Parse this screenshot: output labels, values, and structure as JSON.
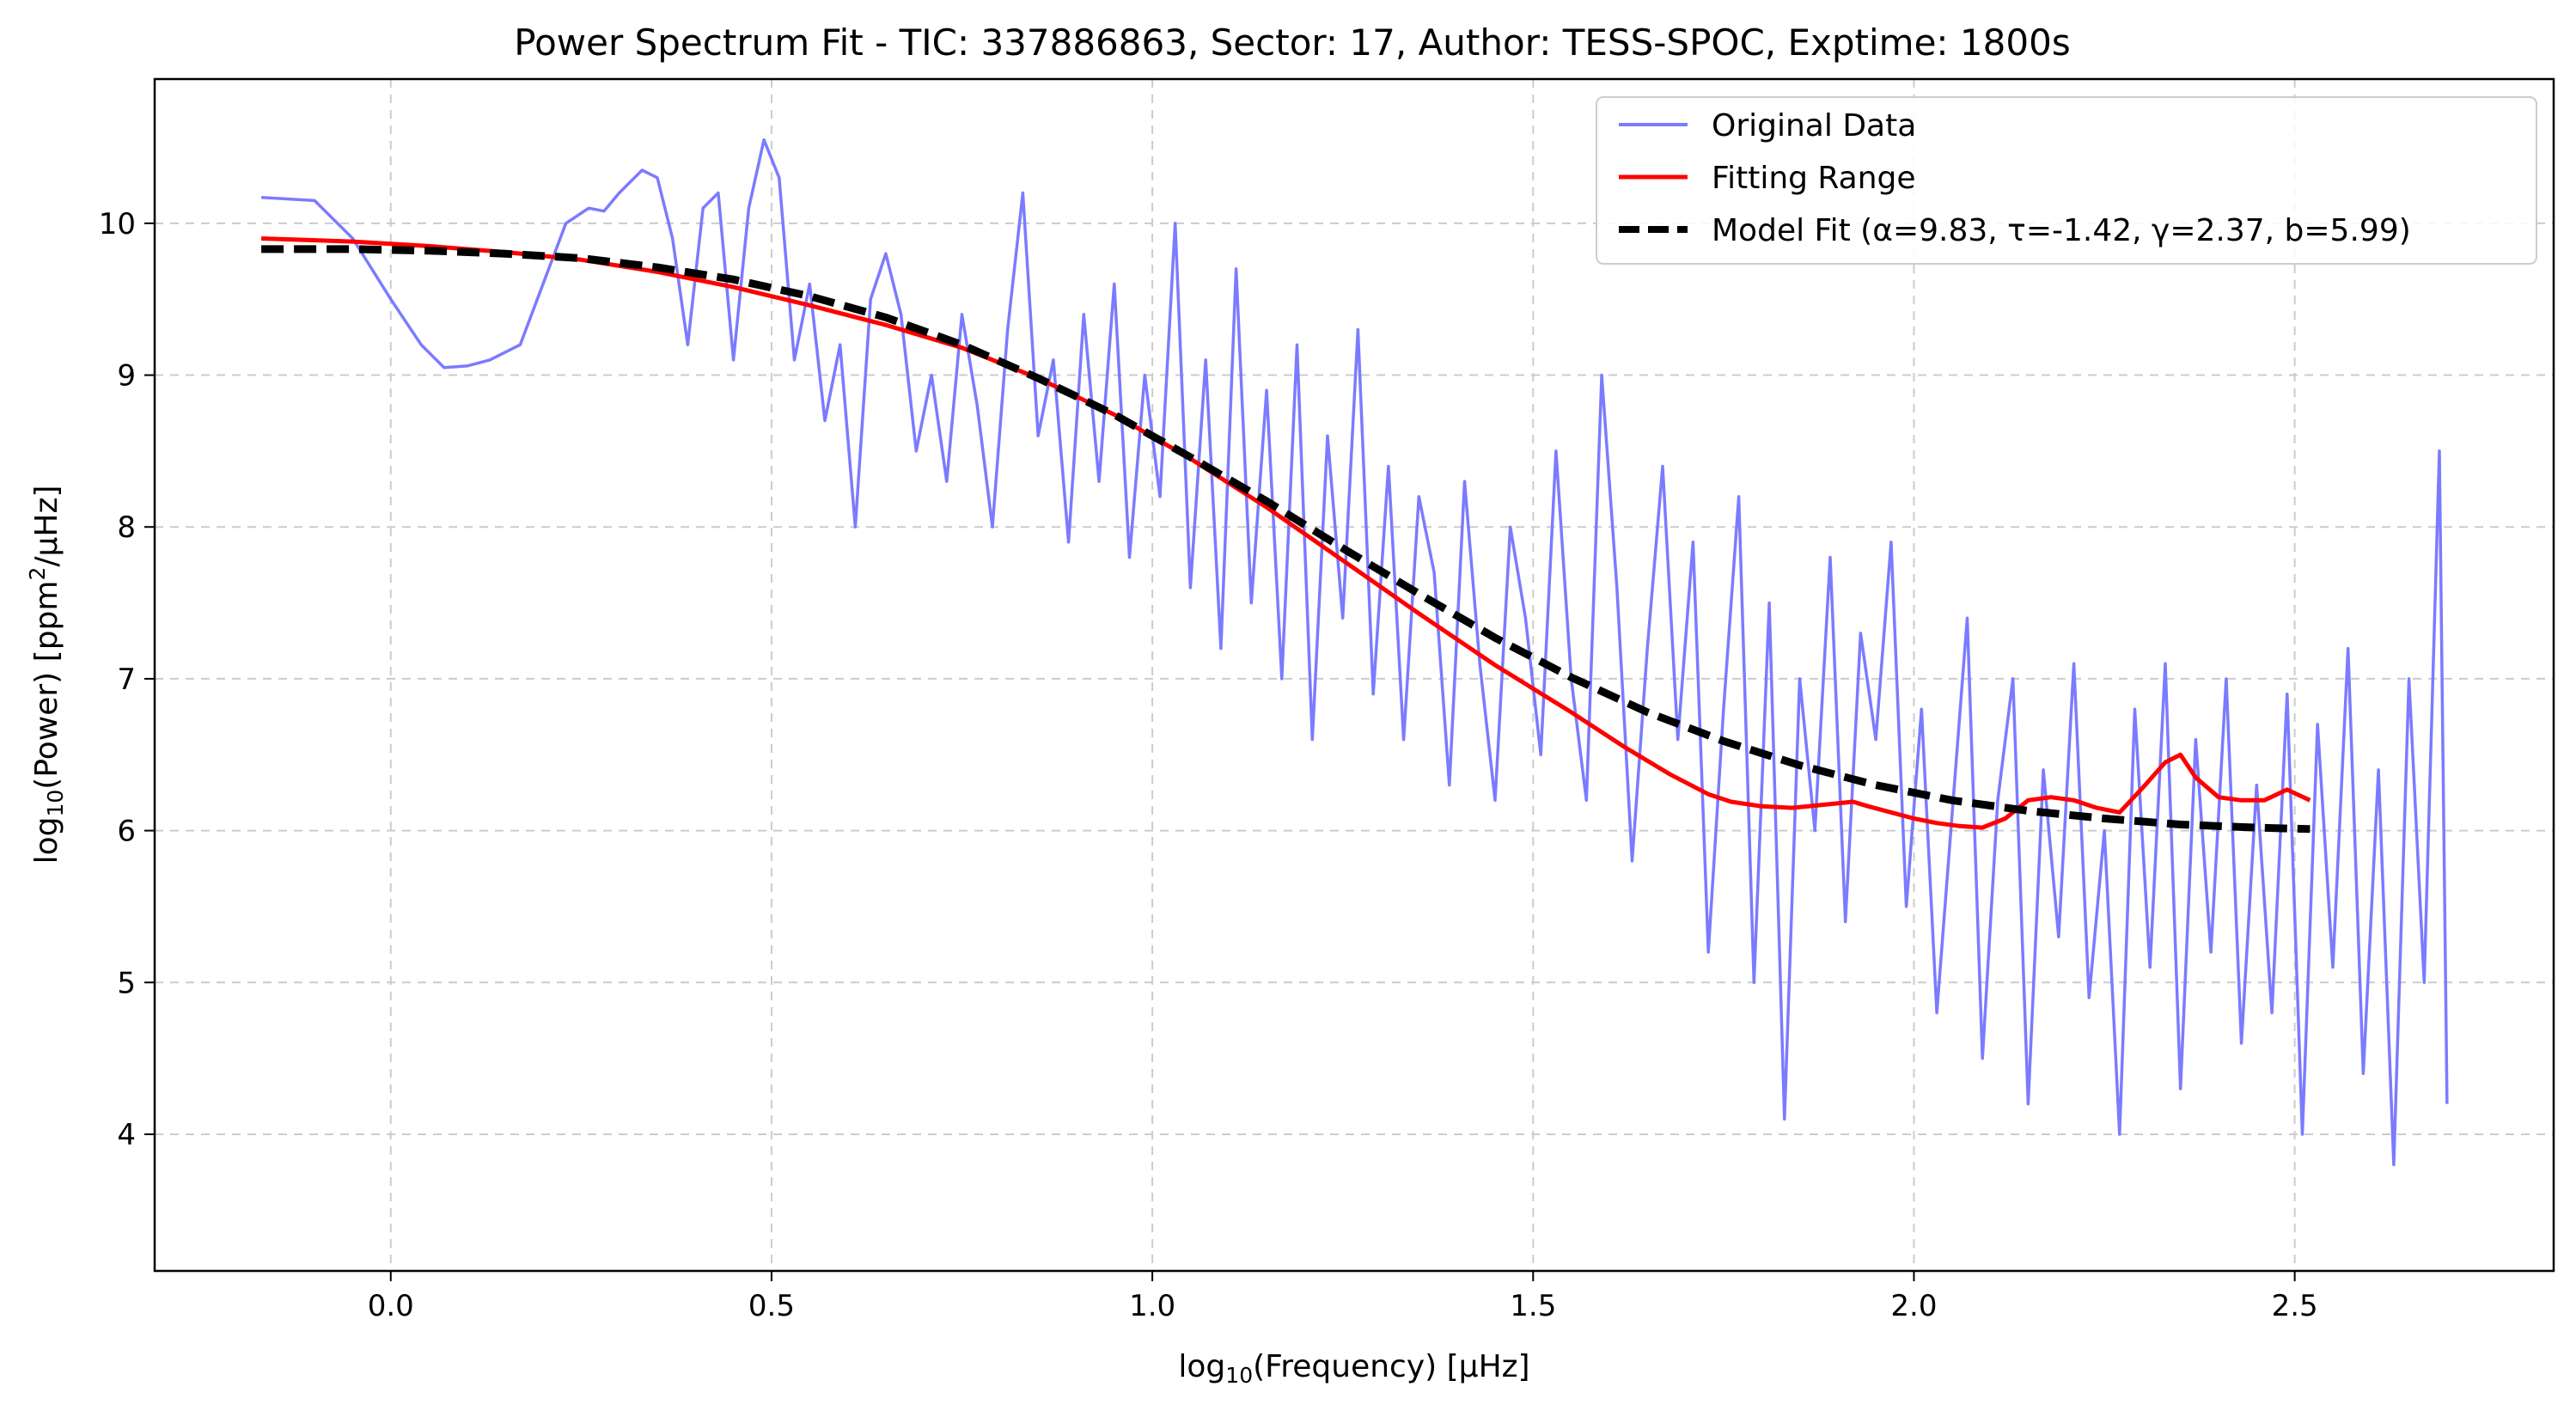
{
  "chart_data": {
    "type": "line",
    "title": "Power Spectrum Fit - TIC: 337886863, Sector: 17, Author: TESS-SPOC, Exptime: 1800s",
    "xlabel_main": "log",
    "xlabel_sub": "10",
    "xlabel_rest": "(Frequency) [μHz]",
    "ylabel_main": "log",
    "ylabel_sub": "10",
    "ylabel_mid": "(Power) [ppm",
    "ylabel_sup": "2",
    "ylabel_rest": "/μHz]",
    "xlim": [
      -0.31,
      2.84
    ],
    "ylim": [
      3.1,
      10.95
    ],
    "xticks": [
      0.0,
      0.5,
      1.0,
      1.5,
      2.0,
      2.5
    ],
    "xtick_labels": [
      "0.0",
      "0.5",
      "1.0",
      "1.5",
      "2.0",
      "2.5"
    ],
    "yticks": [
      4,
      5,
      6,
      7,
      8,
      9,
      10
    ],
    "ytick_labels": [
      "4",
      "5",
      "6",
      "7",
      "8",
      "9",
      "10"
    ],
    "grid": true,
    "legend_position": "top-right",
    "colors": {
      "original": "#7b7bff",
      "fitting": "#ff0000",
      "model": "#000000",
      "grid": "#cccccc"
    },
    "legend": [
      "Original Data",
      "Fitting Range",
      "Model Fit (α=9.83, τ=-1.42, γ=2.37, b=5.99)"
    ],
    "series": [
      {
        "name": "Original Data",
        "style": "solid",
        "x": [
          -0.17,
          -0.1,
          -0.05,
          0.0,
          0.04,
          0.07,
          0.1,
          0.13,
          0.17,
          0.2,
          0.23,
          0.26,
          0.28,
          0.3,
          0.33,
          0.35,
          0.37,
          0.39,
          0.41,
          0.43,
          0.45,
          0.47,
          0.49,
          0.51,
          0.53,
          0.55,
          0.57,
          0.59,
          0.61,
          0.63,
          0.65,
          0.67,
          0.69,
          0.71,
          0.73,
          0.75,
          0.77,
          0.79,
          0.81,
          0.83,
          0.85,
          0.87,
          0.89,
          0.91,
          0.93,
          0.95,
          0.97,
          0.99,
          1.01,
          1.03,
          1.05,
          1.07,
          1.09,
          1.11,
          1.13,
          1.15,
          1.17,
          1.19,
          1.21,
          1.23,
          1.25,
          1.27,
          1.29,
          1.31,
          1.33,
          1.35,
          1.37,
          1.39,
          1.41,
          1.43,
          1.45,
          1.47,
          1.49,
          1.51,
          1.53,
          1.55,
          1.57,
          1.59,
          1.61,
          1.63,
          1.65,
          1.67,
          1.69,
          1.71,
          1.73,
          1.75,
          1.77,
          1.79,
          1.81,
          1.83,
          1.85,
          1.87,
          1.89,
          1.91,
          1.93,
          1.95,
          1.97,
          1.99,
          2.01,
          2.03,
          2.05,
          2.07,
          2.09,
          2.11,
          2.13,
          2.15,
          2.17,
          2.19,
          2.21,
          2.23,
          2.25,
          2.27,
          2.29,
          2.31,
          2.33,
          2.35,
          2.37,
          2.39,
          2.41,
          2.43,
          2.45,
          2.47,
          2.49,
          2.51,
          2.53,
          2.55,
          2.57,
          2.59,
          2.61,
          2.63,
          2.65,
          2.67,
          2.69,
          2.7
        ],
        "y": [
          10.17,
          10.15,
          9.9,
          9.5,
          9.2,
          9.05,
          9.06,
          9.1,
          9.2,
          9.6,
          10.0,
          10.1,
          10.08,
          10.2,
          10.35,
          10.3,
          9.9,
          9.2,
          10.1,
          10.2,
          9.1,
          10.1,
          10.55,
          10.3,
          9.1,
          9.6,
          8.7,
          9.2,
          8.0,
          9.5,
          9.8,
          9.4,
          8.5,
          9.0,
          8.3,
          9.4,
          8.8,
          8.0,
          9.3,
          10.2,
          8.6,
          9.1,
          7.9,
          9.4,
          8.3,
          9.6,
          7.8,
          9.0,
          8.2,
          10.0,
          7.6,
          9.1,
          7.2,
          9.7,
          7.5,
          8.9,
          7.0,
          9.2,
          6.6,
          8.6,
          7.4,
          9.3,
          6.9,
          8.4,
          6.6,
          8.2,
          7.7,
          6.3,
          8.3,
          7.1,
          6.2,
          8.0,
          7.4,
          6.5,
          8.5,
          7.0,
          6.2,
          9.0,
          7.6,
          5.8,
          7.2,
          8.4,
          6.6,
          7.9,
          5.2,
          6.8,
          8.2,
          5.0,
          7.5,
          4.1,
          7.0,
          6.0,
          7.8,
          5.4,
          7.3,
          6.6,
          7.9,
          5.5,
          6.8,
          4.8,
          6.1,
          7.4,
          4.5,
          6.2,
          7.0,
          4.2,
          6.4,
          5.3,
          7.1,
          4.9,
          6.0,
          4.0,
          6.8,
          5.1,
          7.1,
          4.3,
          6.6,
          5.2,
          7.0,
          4.6,
          6.3,
          4.8,
          6.9,
          4.0,
          6.7,
          5.1,
          7.2,
          4.4,
          6.4,
          3.8,
          7.0,
          5.0,
          8.5,
          4.2
        ]
      },
      {
        "name": "Fitting Range",
        "style": "solid",
        "x": [
          -0.17,
          -0.05,
          0.05,
          0.15,
          0.25,
          0.35,
          0.45,
          0.55,
          0.65,
          0.75,
          0.85,
          0.95,
          1.05,
          1.15,
          1.25,
          1.35,
          1.45,
          1.55,
          1.62,
          1.68,
          1.73,
          1.76,
          1.8,
          1.84,
          1.88,
          1.92,
          1.94,
          1.97,
          2.0,
          2.03,
          2.06,
          2.09,
          2.12,
          2.15,
          2.18,
          2.21,
          2.24,
          2.27,
          2.3,
          2.33,
          2.35,
          2.37,
          2.4,
          2.43,
          2.46,
          2.49,
          2.52
        ],
        "y": [
          9.9,
          9.88,
          9.85,
          9.81,
          9.76,
          9.68,
          9.58,
          9.46,
          9.33,
          9.18,
          8.98,
          8.74,
          8.45,
          8.13,
          7.78,
          7.43,
          7.09,
          6.78,
          6.55,
          6.37,
          6.24,
          6.19,
          6.16,
          6.15,
          6.17,
          6.19,
          6.16,
          6.12,
          6.08,
          6.05,
          6.03,
          6.02,
          6.08,
          6.2,
          6.22,
          6.2,
          6.15,
          6.12,
          6.28,
          6.45,
          6.5,
          6.35,
          6.22,
          6.2,
          6.2,
          6.27,
          6.2
        ]
      },
      {
        "name": "Model Fit (α=9.83, τ=-1.42, γ=2.37, b=5.99)",
        "style": "dashed",
        "x": [
          -0.17,
          -0.05,
          0.05,
          0.15,
          0.25,
          0.35,
          0.45,
          0.55,
          0.65,
          0.75,
          0.85,
          0.95,
          1.05,
          1.15,
          1.25,
          1.35,
          1.45,
          1.55,
          1.65,
          1.75,
          1.85,
          1.95,
          2.05,
          2.15,
          2.25,
          2.35,
          2.45,
          2.52
        ],
        "y": [
          9.83,
          9.83,
          9.82,
          9.8,
          9.77,
          9.71,
          9.63,
          9.52,
          9.38,
          9.2,
          8.98,
          8.74,
          8.46,
          8.17,
          7.86,
          7.56,
          7.27,
          7.01,
          6.78,
          6.59,
          6.43,
          6.3,
          6.2,
          6.13,
          6.08,
          6.04,
          6.02,
          6.01
        ]
      }
    ]
  }
}
